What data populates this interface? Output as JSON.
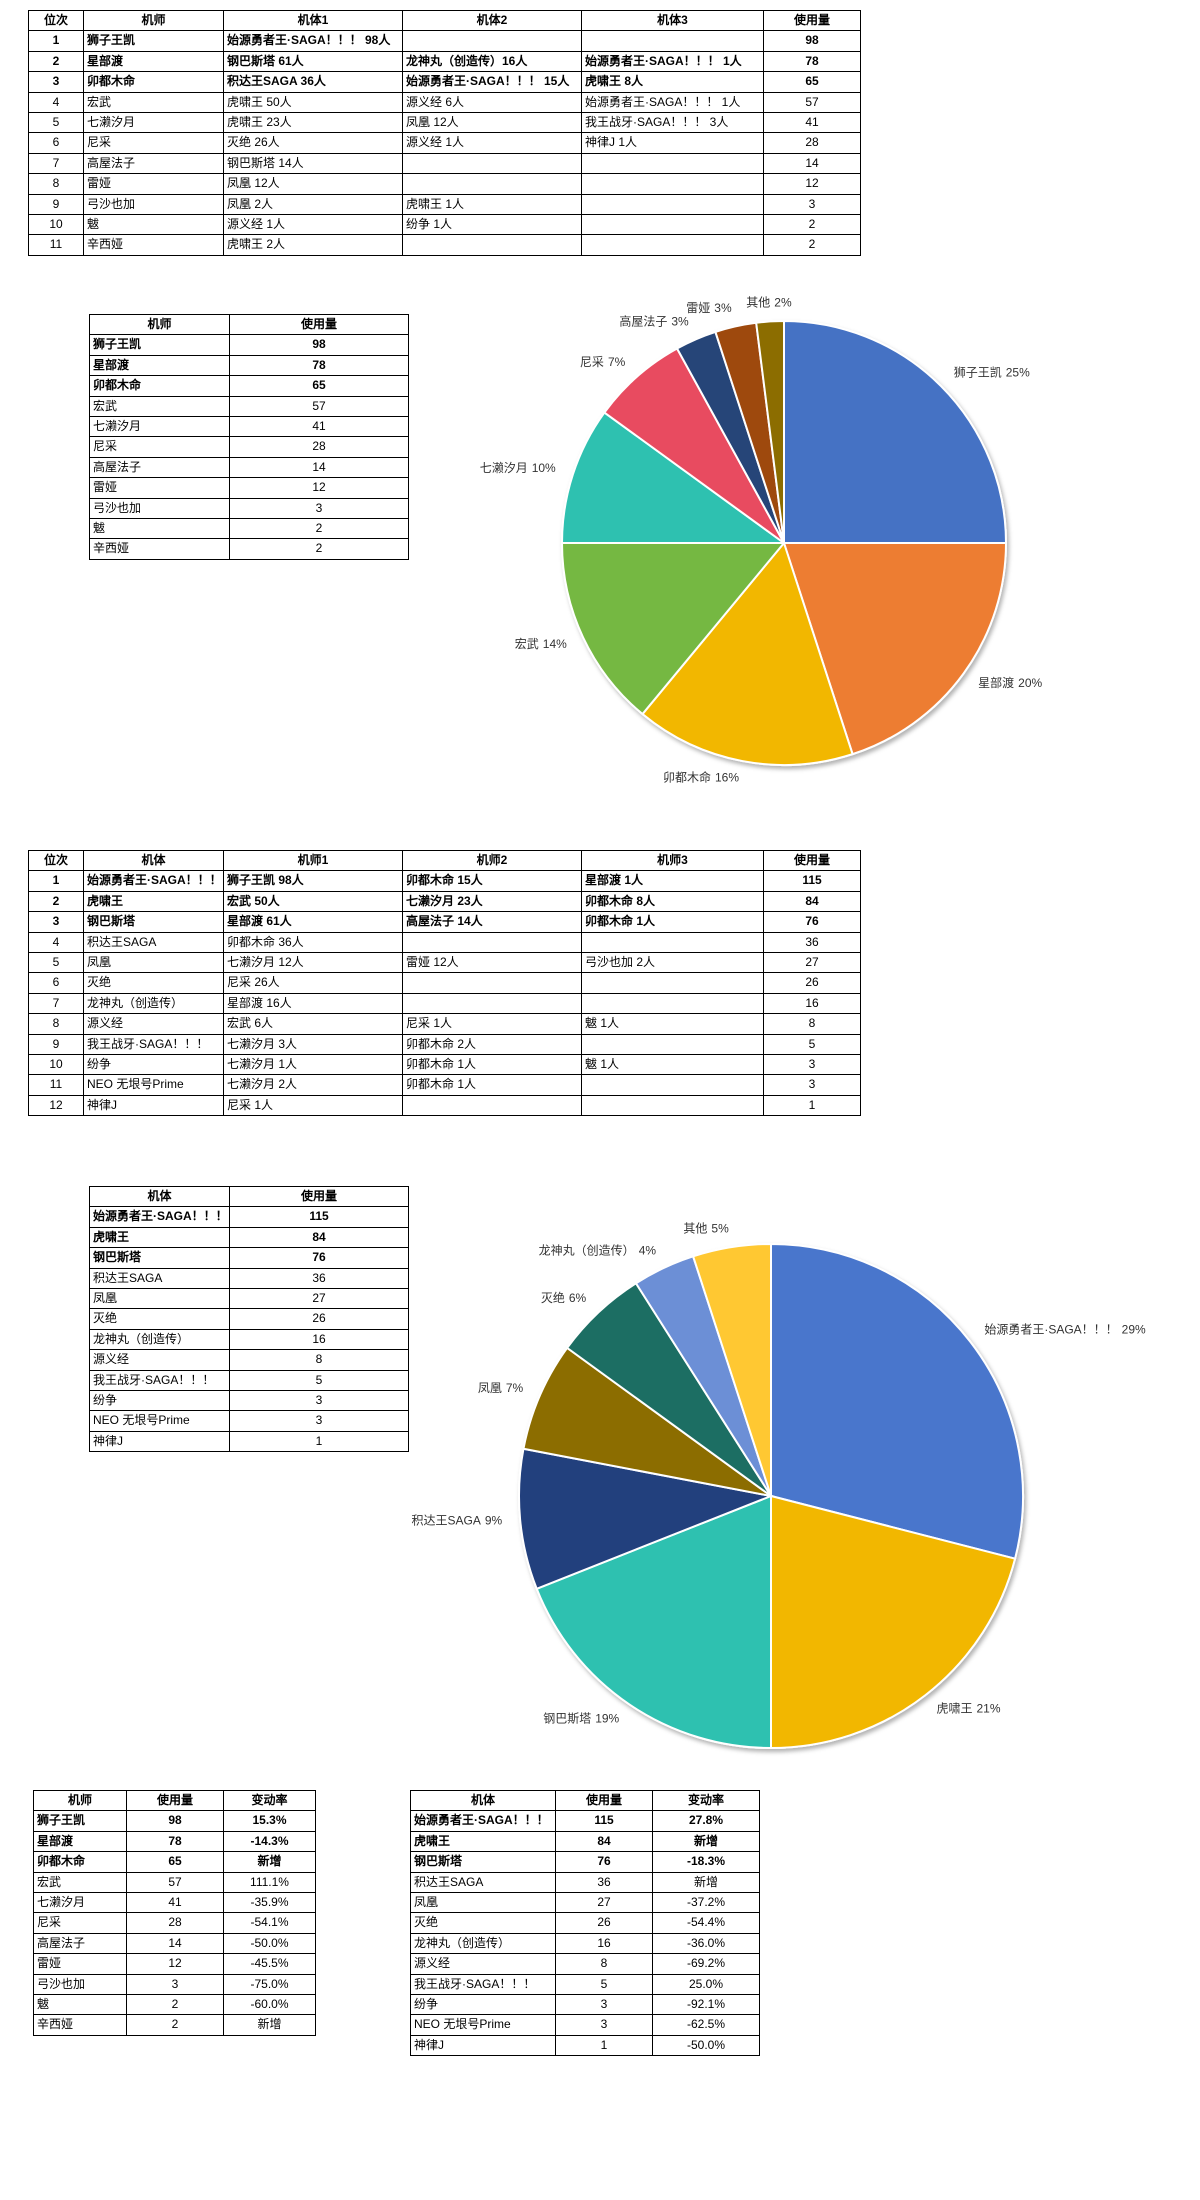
{
  "tables": [
    {
      "header": [
        "位次",
        "机师",
        "机体1",
        "机体2",
        "机体3",
        "使用量"
      ],
      "rows": [
        [
          1,
          "狮子王凯",
          "始源勇者王·SAGA！！！ 98人",
          null,
          null,
          98
        ],
        [
          2,
          "星部渡",
          "钢巴斯塔 61人",
          "龙神丸（创造传）16人",
          "始源勇者王·SAGA！！！ 1人",
          78
        ],
        [
          3,
          "卯都木命",
          "积达王SAGA 36人",
          "始源勇者王·SAGA！！！ 15人",
          "虎啸王 8人",
          65
        ],
        [
          4,
          "宏武",
          "虎啸王 50人",
          "源义经 6人",
          "始源勇者王·SAGA！！！ 1人",
          57
        ],
        [
          5,
          "七濑汐月",
          "虎啸王 23人",
          "凤凰 12人",
          "我王战牙·SAGA！！！ 3人",
          41
        ],
        [
          6,
          "尼采",
          "灭绝 26人",
          "源义经 1人",
          "神律J 1人",
          28
        ],
        [
          7,
          "高屋法子",
          "钢巴斯塔 14人",
          null,
          null,
          14
        ],
        [
          8,
          "雷娅",
          "凤凰 12人",
          null,
          null,
          12
        ],
        [
          9,
          "弓沙也加",
          "凤凰 2人",
          "虎啸王 1人",
          null,
          3
        ],
        [
          10,
          "魃",
          "源义经 1人",
          "纷争 1人",
          null,
          2
        ],
        [
          11,
          "辛西娅",
          "虎啸王 2人",
          null,
          null,
          2
        ]
      ]
    },
    {
      "header": [
        "机师",
        "使用量"
      ],
      "rows": [
        [
          "狮子王凯",
          98
        ],
        [
          "星部渡",
          78
        ],
        [
          "卯都木命",
          65
        ],
        [
          "宏武",
          57
        ],
        [
          "七濑汐月",
          41
        ],
        [
          "尼采",
          28
        ],
        [
          "高屋法子",
          14
        ],
        [
          "雷娅",
          12
        ],
        [
          "弓沙也加",
          3
        ],
        [
          "魃",
          2
        ],
        [
          "辛西娅",
          2
        ]
      ]
    },
    {
      "header": [
        "位次",
        "机体",
        "机师1",
        "机师2",
        "机师3",
        "使用量"
      ],
      "rows": [
        [
          1,
          "始源勇者王·SAGA！！！",
          "狮子王凯 98人",
          "卯都木命 15人",
          "星部渡 1人",
          115
        ],
        [
          2,
          "虎啸王",
          "宏武 50人",
          "七濑汐月 23人",
          "卯都木命 8人",
          84
        ],
        [
          3,
          "钢巴斯塔",
          "星部渡 61人",
          "高屋法子 14人",
          "卯都木命 1人",
          76
        ],
        [
          4,
          "积达王SAGA",
          "卯都木命 36人",
          null,
          null,
          36
        ],
        [
          5,
          "凤凰",
          "七濑汐月 12人",
          "雷娅 12人",
          "弓沙也加 2人",
          27
        ],
        [
          6,
          "灭绝",
          "尼采 26人",
          null,
          null,
          26
        ],
        [
          7,
          "龙神丸（创造传）",
          "星部渡 16人",
          null,
          null,
          16
        ],
        [
          8,
          "源义经",
          "宏武 6人",
          "尼采 1人",
          "魃 1人",
          8
        ],
        [
          9,
          "我王战牙·SAGA！！！",
          "七濑汐月 3人",
          "卯都木命 2人",
          null,
          5
        ],
        [
          10,
          "纷争",
          "七濑汐月 1人",
          "卯都木命 1人",
          "魃 1人",
          3
        ],
        [
          11,
          "NEO 无垠号Prime",
          "七濑汐月 2人",
          "卯都木命 1人",
          null,
          3
        ],
        [
          12,
          "神律J",
          "尼采 1人",
          null,
          null,
          1
        ]
      ]
    },
    {
      "header": [
        "机体",
        "使用量"
      ],
      "rows": [
        [
          "始源勇者王·SAGA！！！",
          115
        ],
        [
          "虎啸王",
          84
        ],
        [
          "钢巴斯塔",
          76
        ],
        [
          "积达王SAGA",
          36
        ],
        [
          "凤凰",
          27
        ],
        [
          "灭绝",
          26
        ],
        [
          "龙神丸（创造传）",
          16
        ],
        [
          "源义经",
          8
        ],
        [
          "我王战牙·SAGA！！！",
          5
        ],
        [
          "纷争",
          3
        ],
        [
          "NEO 无垠号Prime",
          3
        ],
        [
          "神律J",
          1
        ]
      ]
    },
    {
      "header": [
        "机师",
        "使用量",
        "变动率"
      ],
      "rows": [
        [
          "狮子王凯",
          98,
          "15.3%"
        ],
        [
          "星部渡",
          78,
          "-14.3%"
        ],
        [
          "卯都木命",
          65,
          "新增"
        ],
        [
          "宏武",
          57,
          "111.1%"
        ],
        [
          "七濑汐月",
          41,
          "-35.9%"
        ],
        [
          "尼采",
          28,
          "-54.1%"
        ],
        [
          "高屋法子",
          14,
          "-50.0%"
        ],
        [
          "雷娅",
          12,
          "-45.5%"
        ],
        [
          "弓沙也加",
          3,
          "-75.0%"
        ],
        [
          "魃",
          2,
          "-60.0%"
        ],
        [
          "辛西娅",
          2,
          "新增"
        ]
      ]
    },
    {
      "header": [
        "机体",
        "使用量",
        "变动率"
      ],
      "rows": [
        [
          "始源勇者王·SAGA！！！",
          115,
          "27.8%"
        ],
        [
          "虎啸王",
          84,
          "新增"
        ],
        [
          "钢巴斯塔",
          76,
          "-18.3%"
        ],
        [
          "积达王SAGA",
          36,
          "新增"
        ],
        [
          "凤凰",
          27,
          "-37.2%"
        ],
        [
          "灭绝",
          26,
          "-54.4%"
        ],
        [
          "龙神丸（创造传）",
          16,
          "-36.0%"
        ],
        [
          "源义经",
          8,
          "-69.2%"
        ],
        [
          "我王战牙·SAGA！！！",
          5,
          "25.0%"
        ],
        [
          "纷争",
          3,
          "-92.1%"
        ],
        [
          "NEO 无垠号Prime",
          3,
          "-62.5%"
        ],
        [
          "神律J",
          1,
          "-50.0%"
        ]
      ]
    }
  ],
  "chart_data": [
    {
      "type": "pie",
      "categories": [
        "狮子王凯",
        "星部渡",
        "卯都木命",
        "宏武",
        "七濑汐月",
        "尼采",
        "高屋法子",
        "雷娅",
        "其他"
      ],
      "values": [
        25,
        20,
        16,
        14,
        10,
        7,
        3,
        3,
        2
      ],
      "value_labels": [
        "25%",
        "20%",
        "16%",
        "14%",
        "10%",
        "7%",
        "3%",
        "3%",
        "2%"
      ],
      "colors": [
        "#4472c4",
        "#ed7d31",
        "#f2b705",
        "#74b843",
        "#2fc1b0",
        "#e84c60",
        "#264478",
        "#9e480e",
        "#8c6d00"
      ]
    },
    {
      "type": "pie",
      "categories": [
        "始源勇者王·SAGA！！！",
        "虎啸王",
        "钢巴斯塔",
        "积达王SAGA",
        "凤凰",
        "灭绝",
        "龙神丸（创造传）",
        "其他"
      ],
      "values": [
        29,
        21,
        19,
        9,
        7,
        6,
        4,
        5
      ],
      "value_labels": [
        "29%",
        "21%",
        "19%",
        "9%",
        "7%",
        "6%",
        "4%",
        "5%"
      ],
      "colors": [
        "#4a76cc",
        "#f2b705",
        "#2fc1b0",
        "#233f7d",
        "#8c6d00",
        "#1e6e64",
        "#6c8fd6",
        "#ffc832"
      ]
    }
  ]
}
